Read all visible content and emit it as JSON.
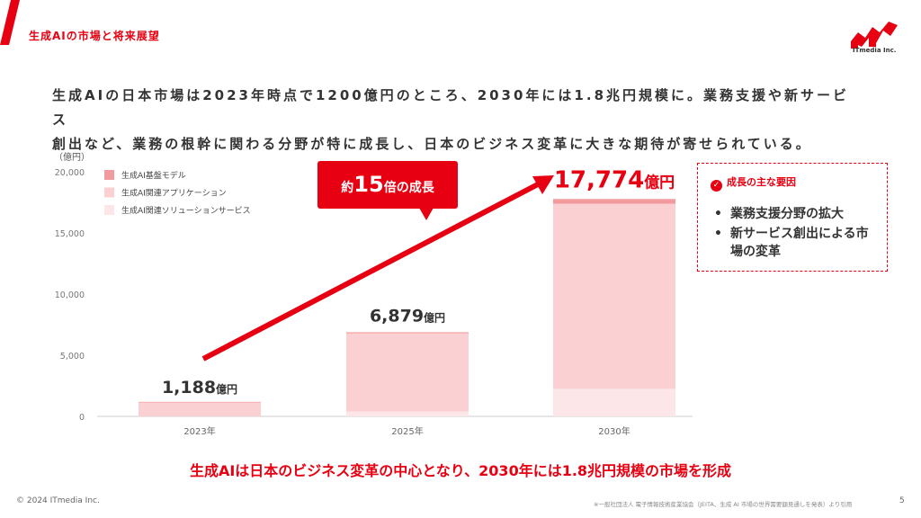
{
  "header": {
    "title": "生成AIの市場と将来展望",
    "logo_text": "ITmedia Inc."
  },
  "headline": {
    "line1": "生成AIの日本市場は2023年時点で1200億円のところ、2030年には1.8兆円規模に。業務支援や新サービス",
    "line2": "創出など、業務の根幹に関わる分野が特に成長し、日本のビジネス変革に大きな期待が寄せられている。"
  },
  "callout": {
    "prefix": "約",
    "number": "15",
    "suffix": "倍の成長"
  },
  "factors": {
    "title": "成長の主な要因",
    "items": [
      {
        "bullet": "•",
        "text": "業務支援分野の拡大"
      },
      {
        "bullet": "•",
        "text": "新サービス創出による市場の変革"
      }
    ]
  },
  "conclusion": "生成AIは日本のビジネス変革の中心となり、2030年には1.8兆円規模の市場を形成",
  "footer": {
    "copyright": "© 2024 ITmedia Inc.",
    "source": "※一般社団法人 電子情報技術産業協会（JEITA、生成 AI 市場の世界需要額見通しを発表）より引用",
    "page": "5"
  },
  "colors": {
    "accent": "#e60012",
    "series_foundation": "#f29a9e",
    "series_apps": "#fad0d2",
    "series_solutions": "#fce6e7",
    "arrow": "#e60012"
  },
  "chart_data": {
    "type": "bar",
    "stacked": true,
    "ylabel": "（億円）",
    "ylim": [
      0,
      20000
    ],
    "yticks": [
      "0",
      "5,000",
      "10,000",
      "15,000",
      "20,000"
    ],
    "ytick_values": [
      0,
      5000,
      10000,
      15000,
      20000
    ],
    "categories": [
      "2023年",
      "2025年",
      "2030年"
    ],
    "series": [
      {
        "name": "生成AI関連ソリューションサービス",
        "values": [
          0,
          400,
          2250
        ]
      },
      {
        "name": "生成AI関連アプリケーション",
        "values": [
          1140,
          6399,
          15130
        ]
      },
      {
        "name": "生成AI基盤モデル",
        "values": [
          48,
          80,
          394
        ]
      }
    ],
    "totals": [
      1188,
      6879,
      17774
    ],
    "total_labels": [
      {
        "number": "1,188",
        "unit": "億円"
      },
      {
        "number": "6,879",
        "unit": "億円"
      },
      {
        "number": "17,774",
        "unit": "億円"
      }
    ],
    "legend": [
      "生成AI基盤モデル",
      "生成AI関連アプリケーション",
      "生成AI関連ソリューションサービス"
    ],
    "legend_position": "top-left",
    "grid": false
  }
}
